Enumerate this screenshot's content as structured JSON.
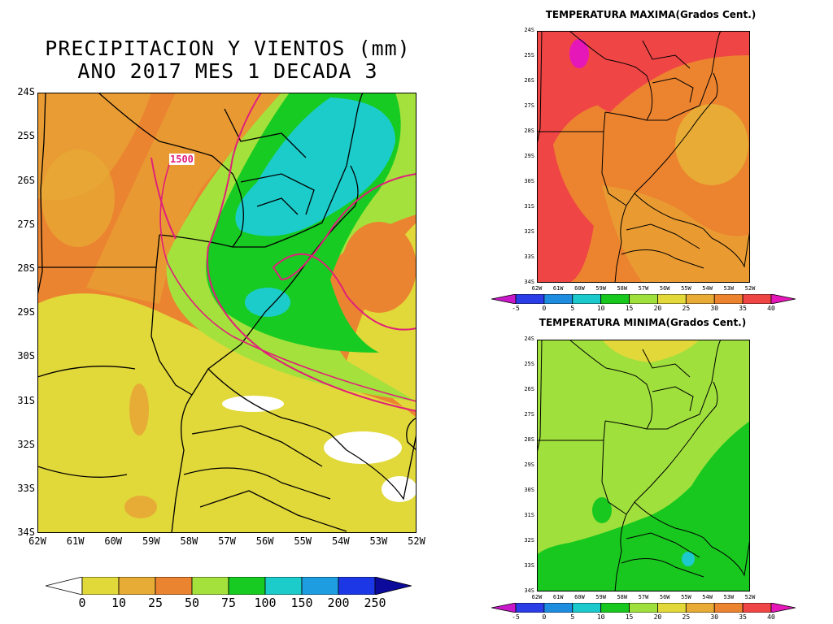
{
  "main_map": {
    "title_line1": "PRECIPITACION Y VIENTOS (mm)",
    "title_line2": "ANO 2017 MES 1 DECADA 3",
    "contour_label": "1500",
    "lat_labels": [
      "24S",
      "25S",
      "26S",
      "27S",
      "28S",
      "29S",
      "30S",
      "31S",
      "32S",
      "33S",
      "34S"
    ],
    "lon_labels": [
      "62W",
      "61W",
      "60W",
      "59W",
      "58W",
      "57W",
      "56W",
      "55W",
      "54W",
      "53W",
      "52W"
    ],
    "colorbar": {
      "ticks": [
        "0",
        "10",
        "25",
        "50",
        "75",
        "100",
        "150",
        "200",
        "250"
      ],
      "colors": [
        "#ffffff",
        "#e1d83a",
        "#e7ac35",
        "#eb8430",
        "#a4e13c",
        "#17cb22",
        "#1ccccb",
        "#1e9de0",
        "#1b37e6",
        "#0b0a9a"
      ]
    }
  },
  "tmax_map": {
    "title": "TEMPERATURA MAXIMA(Grados Cent.)",
    "lat_labels": [
      "24S",
      "25S",
      "26S",
      "27S",
      "28S",
      "29S",
      "30S",
      "31S",
      "32S",
      "33S",
      "34S"
    ],
    "lon_labels": [
      "62W",
      "61W",
      "60W",
      "59W",
      "58W",
      "57W",
      "56W",
      "55W",
      "54W",
      "53W",
      "52W"
    ]
  },
  "tmin_map": {
    "title": "TEMPERATURA MINIMA(Grados Cent.)",
    "lat_labels": [
      "24S",
      "25S",
      "26S",
      "27S",
      "28S",
      "29S",
      "30S",
      "31S",
      "32S",
      "33S",
      "34S"
    ],
    "lon_labels": [
      "62W",
      "61W",
      "60W",
      "59W",
      "58W",
      "57W",
      "56W",
      "55W",
      "54W",
      "53W",
      "52W"
    ]
  },
  "temp_colorbar": {
    "ticks": [
      "-5",
      "0",
      "5",
      "10",
      "15",
      "20",
      "25",
      "30",
      "35",
      "40"
    ],
    "colors": [
      "#c918c9",
      "#2a3de6",
      "#1e8de0",
      "#1cc9cc",
      "#19c81f",
      "#9fe03d",
      "#e2d83a",
      "#e8ab35",
      "#ec832f",
      "#f04545",
      "#e617b8"
    ]
  }
}
